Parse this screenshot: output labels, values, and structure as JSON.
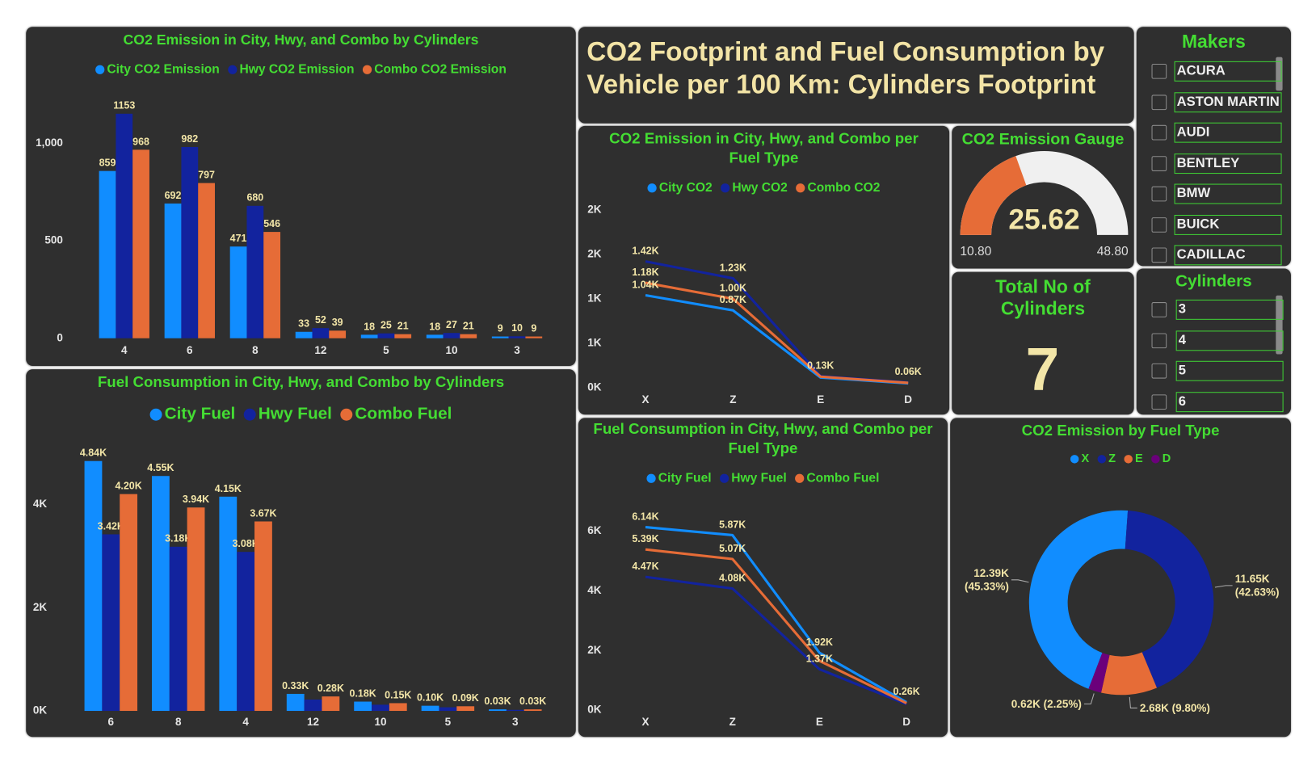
{
  "title": "CO2 Footprint and Fuel Consumption by Vehicle per 100 Km: Cylinders Footprint",
  "chart_data": [
    {
      "type": "bar",
      "title": "CO2 Emission in City, Hwy, and Combo by Cylinders",
      "categories": [
        "4",
        "6",
        "8",
        "12",
        "5",
        "10",
        "3"
      ],
      "series": [
        {
          "name": "City CO2 Emission",
          "color": "#118dff",
          "values": [
            859,
            692,
            471,
            33,
            18,
            18,
            9
          ]
        },
        {
          "name": "Hwy CO2 Emission",
          "color": "#12239e",
          "values": [
            1153,
            982,
            680,
            52,
            25,
            27,
            10
          ]
        },
        {
          "name": "Combo CO2 Emission",
          "color": "#e66c37",
          "values": [
            968,
            797,
            546,
            39,
            21,
            21,
            9
          ]
        }
      ],
      "ylim": [
        0,
        1250
      ],
      "yticks": [
        0,
        500,
        {
          "value": 1000,
          "label": "1,000"
        }
      ]
    },
    {
      "type": "bar",
      "title": "Fuel Consumption in City, Hwy, and Combo by Cylinders",
      "categories": [
        "6",
        "8",
        "4",
        "12",
        "10",
        "5",
        "3"
      ],
      "series": [
        {
          "name": "City Fuel",
          "color": "#118dff",
          "values": [
            4840,
            4550,
            4150,
            330,
            180,
            100,
            30
          ],
          "value_labels": [
            "4.84K",
            "4.55K",
            "4.15K",
            "0.33K",
            "0.18K",
            "0.10K",
            "0.03K"
          ]
        },
        {
          "name": "Hwy Fuel",
          "color": "#12239e",
          "values": [
            3420,
            3180,
            3080,
            220,
            120,
            70,
            20
          ],
          "value_labels": [
            "3.42K",
            "3.18K",
            "3.08K",
            null,
            null,
            null,
            null
          ]
        },
        {
          "name": "Combo Fuel",
          "color": "#e66c37",
          "values": [
            4200,
            3940,
            3670,
            280,
            150,
            90,
            30
          ],
          "value_labels": [
            "4.20K",
            "3.94K",
            "3.67K",
            "0.28K",
            "0.15K",
            "0.09K",
            "0.03K"
          ]
        }
      ],
      "ylim": [
        0,
        5300
      ],
      "yticks": [
        {
          "value": 0,
          "label": "0K"
        },
        {
          "value": 2000,
          "label": "2K"
        },
        {
          "value": 4000,
          "label": "4K"
        }
      ]
    },
    {
      "type": "line",
      "title": "CO2 Emission in City, Hwy, and Combo per Fuel Type",
      "categories": [
        "X",
        "Z",
        "E",
        "D"
      ],
      "series": [
        {
          "name": "City CO2",
          "color": "#118dff",
          "values": [
            1040,
            870,
            115,
            50
          ],
          "value_labels": [
            "1.04K",
            "0.87K",
            null,
            null
          ]
        },
        {
          "name": "Hwy CO2",
          "color": "#12239e",
          "values": [
            1420,
            1230,
            130,
            60
          ],
          "value_labels": [
            "1.42K",
            "1.23K",
            "0.13K",
            "0.06K"
          ]
        },
        {
          "name": "Combo CO2",
          "color": "#e66c37",
          "values": [
            1180,
            1000,
            125,
            55
          ],
          "value_labels": [
            "1.18K",
            "1.00K",
            null,
            null
          ]
        }
      ],
      "ylim": [
        0,
        2100
      ],
      "yticks": [
        {
          "value": 0,
          "label": "0K"
        },
        {
          "value": 500,
          "label": "1K"
        },
        {
          "value": 1000,
          "label": "1K"
        },
        {
          "value": 1500,
          "label": "2K"
        },
        {
          "value": 2000,
          "label": "2K"
        }
      ]
    },
    {
      "type": "line",
      "title": "Fuel Consumption in City, Hwy, and Combo per Fuel Type",
      "categories": [
        "X",
        "Z",
        "E",
        "D"
      ],
      "series": [
        {
          "name": "City Fuel",
          "color": "#118dff",
          "values": [
            6140,
            5870,
            1920,
            260
          ],
          "value_labels": [
            "6.14K",
            "5.87K",
            "1.92K",
            "0.26K"
          ]
        },
        {
          "name": "Hwy Fuel",
          "color": "#12239e",
          "values": [
            4470,
            4080,
            1370,
            200
          ],
          "value_labels": [
            "4.47K",
            "4.08K",
            "1.37K",
            null
          ]
        },
        {
          "name": "Combo Fuel",
          "color": "#e66c37",
          "values": [
            5390,
            5070,
            1650,
            230
          ],
          "value_labels": [
            "5.39K",
            "5.07K",
            null,
            null
          ]
        }
      ],
      "ylim": [
        0,
        7000
      ],
      "yticks": [
        {
          "value": 0,
          "label": "0K"
        },
        {
          "value": 2000,
          "label": "2K"
        },
        {
          "value": 4000,
          "label": "4K"
        },
        {
          "value": 6000,
          "label": "6K"
        }
      ]
    },
    {
      "type": "pie",
      "title": "CO2 Emission by Fuel Type",
      "categories": [
        "X",
        "Z",
        "E",
        "D"
      ],
      "values": [
        12390,
        11650,
        2680,
        620
      ],
      "value_labels": [
        "12.39K (45.33%)",
        "11.65K (42.63%)",
        "2.68K (9.80%)",
        "0.62K (2.25%)"
      ],
      "colors": [
        "#118dff",
        "#12239e",
        "#e66c37",
        "#6b007b"
      ]
    },
    {
      "type": "gauge",
      "title": "CO2 Emission Gauge",
      "value": 25.62,
      "min": {
        "value": 10.8,
        "label": "10.80"
      },
      "max": {
        "value": 48.8,
        "label": "48.80"
      },
      "color": "#e66c37"
    },
    {
      "type": "card",
      "title": "Total No of Cylinders",
      "value": 7
    }
  ],
  "slicers": [
    {
      "title": "Makers",
      "items": [
        "ACURA",
        "ASTON MARTIN",
        "AUDI",
        "BENTLEY",
        "BMW",
        "BUICK",
        "CADILLAC"
      ]
    },
    {
      "title": "Cylinders",
      "items": [
        "3",
        "4",
        "5",
        "6"
      ]
    }
  ]
}
